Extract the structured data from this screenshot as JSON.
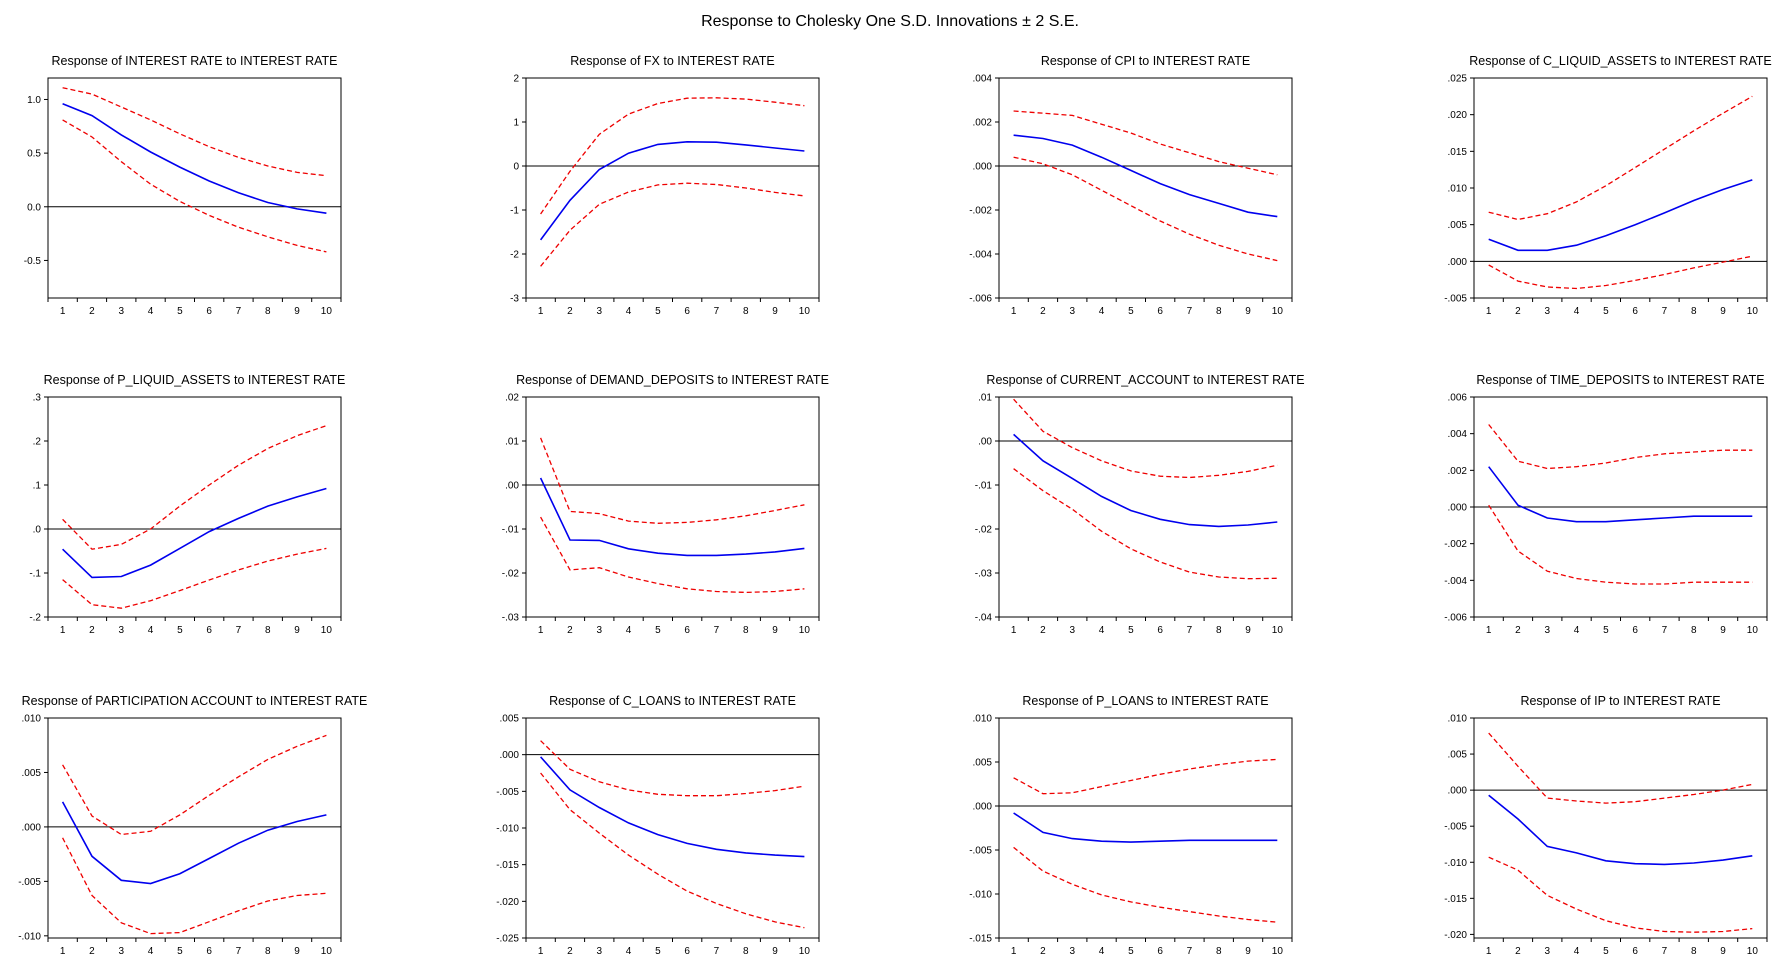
{
  "figure": {
    "title": "Response to Cholesky One S.D. Innovations ± 2 S.E."
  },
  "colors": {
    "response": "#0000ee",
    "bands": "#ee0000",
    "axis": "#000000"
  },
  "chart_data": [
    {
      "type": "line",
      "title": "Response of INTEREST RATE to INTEREST RATE",
      "x": [
        1,
        2,
        3,
        4,
        5,
        6,
        7,
        8,
        9,
        10
      ],
      "ylim": [
        -0.85,
        1.2
      ],
      "yticks": [
        1.0,
        0.5,
        0.0,
        -0.5
      ],
      "ytick_labels": [
        "1.0",
        "0.5",
        "0.0",
        "-0.5"
      ],
      "series": [
        {
          "role": "response",
          "values": [
            0.96,
            0.85,
            0.67,
            0.51,
            0.37,
            0.24,
            0.13,
            0.04,
            -0.02,
            -0.06
          ]
        },
        {
          "role": "upper",
          "values": [
            1.11,
            1.05,
            0.93,
            0.81,
            0.68,
            0.56,
            0.46,
            0.38,
            0.32,
            0.29
          ]
        },
        {
          "role": "lower",
          "values": [
            0.81,
            0.65,
            0.42,
            0.21,
            0.05,
            -0.08,
            -0.19,
            -0.28,
            -0.36,
            -0.42
          ]
        }
      ]
    },
    {
      "type": "line",
      "title": "Response of FX to INTEREST RATE",
      "x": [
        1,
        2,
        3,
        4,
        5,
        6,
        7,
        8,
        9,
        10
      ],
      "ylim": [
        -3,
        2
      ],
      "yticks": [
        2,
        1,
        0,
        -1,
        -2,
        -3
      ],
      "ytick_labels": [
        "2",
        "1",
        "0",
        "-1",
        "-2",
        "-3"
      ],
      "series": [
        {
          "role": "response",
          "values": [
            -1.68,
            -0.78,
            -0.08,
            0.29,
            0.49,
            0.55,
            0.54,
            0.48,
            0.41,
            0.34
          ]
        },
        {
          "role": "upper",
          "values": [
            -1.09,
            -0.12,
            0.72,
            1.18,
            1.42,
            1.54,
            1.55,
            1.52,
            1.45,
            1.37
          ]
        },
        {
          "role": "lower",
          "values": [
            -2.28,
            -1.46,
            -0.87,
            -0.59,
            -0.43,
            -0.39,
            -0.42,
            -0.5,
            -0.6,
            -0.68
          ]
        }
      ]
    },
    {
      "type": "line",
      "title": "Response of CPI to INTEREST RATE",
      "x": [
        1,
        2,
        3,
        4,
        5,
        6,
        7,
        8,
        9,
        10
      ],
      "ylim": [
        -0.006,
        0.004
      ],
      "yticks": [
        0.004,
        0.002,
        0,
        -0.002,
        -0.004,
        -0.006
      ],
      "ytick_labels": [
        ".004",
        ".002",
        ".000",
        "-.002",
        "-.004",
        "-.006"
      ],
      "series": [
        {
          "role": "response",
          "values": [
            0.0014,
            0.00125,
            0.00095,
            0.0004,
            -0.0002,
            -0.0008,
            -0.0013,
            -0.0017,
            -0.0021,
            -0.0023
          ]
        },
        {
          "role": "upper",
          "values": [
            0.0025,
            0.0024,
            0.0023,
            0.0019,
            0.0015,
            0.001,
            0.0006,
            0.0002,
            -0.0001,
            -0.0004
          ]
        },
        {
          "role": "lower",
          "values": [
            0.0004,
            0.0001,
            -0.0004,
            -0.0011,
            -0.0018,
            -0.0025,
            -0.0031,
            -0.0036,
            -0.004,
            -0.0043
          ]
        }
      ]
    },
    {
      "type": "line",
      "title": "Response of C_LIQUID_ASSETS to INTEREST RATE",
      "x": [
        1,
        2,
        3,
        4,
        5,
        6,
        7,
        8,
        9,
        10
      ],
      "ylim": [
        -0.005,
        0.025
      ],
      "yticks": [
        0.025,
        0.02,
        0.015,
        0.01,
        0.005,
        0,
        -0.005
      ],
      "ytick_labels": [
        ".025",
        ".020",
        ".015",
        ".010",
        ".005",
        ".000",
        "-.005"
      ],
      "series": [
        {
          "role": "response",
          "values": [
            0.003,
            0.0015,
            0.0015,
            0.0022,
            0.0035,
            0.005,
            0.0066,
            0.0083,
            0.0098,
            0.0111
          ]
        },
        {
          "role": "upper",
          "values": [
            0.0067,
            0.0057,
            0.0065,
            0.0081,
            0.0103,
            0.0128,
            0.0153,
            0.0178,
            0.0202,
            0.0225
          ]
        },
        {
          "role": "lower",
          "values": [
            -0.0005,
            -0.0027,
            -0.0035,
            -0.0037,
            -0.0033,
            -0.0026,
            -0.0018,
            -0.0009,
            -0.0001,
            0.0007
          ]
        }
      ]
    },
    {
      "type": "line",
      "title": "Response of P_LIQUID_ASSETS to INTEREST RATE",
      "x": [
        1,
        2,
        3,
        4,
        5,
        6,
        7,
        8,
        9,
        10
      ],
      "ylim": [
        -0.2,
        0.3
      ],
      "yticks": [
        0.3,
        0.2,
        0.1,
        0,
        -0.1,
        -0.2
      ],
      "ytick_labels": [
        ".3",
        ".2",
        ".1",
        ".0",
        "-.1",
        "-.2"
      ],
      "series": [
        {
          "role": "response",
          "values": [
            -0.046,
            -0.11,
            -0.108,
            -0.082,
            -0.044,
            -0.006,
            0.024,
            0.052,
            0.073,
            0.092
          ]
        },
        {
          "role": "upper",
          "values": [
            0.022,
            -0.046,
            -0.035,
            0.0,
            0.052,
            0.1,
            0.145,
            0.183,
            0.212,
            0.235
          ]
        },
        {
          "role": "lower",
          "values": [
            -0.115,
            -0.172,
            -0.18,
            -0.163,
            -0.14,
            -0.116,
            -0.093,
            -0.073,
            -0.057,
            -0.044
          ]
        }
      ]
    },
    {
      "type": "line",
      "title": "Response of DEMAND_DEPOSITS to INTEREST RATE",
      "x": [
        1,
        2,
        3,
        4,
        5,
        6,
        7,
        8,
        9,
        10
      ],
      "ylim": [
        -0.03,
        0.02
      ],
      "yticks": [
        0.02,
        0.01,
        0,
        -0.01,
        -0.02,
        -0.03
      ],
      "ytick_labels": [
        ".02",
        ".01",
        ".00",
        "-.01",
        "-.02",
        "-.03"
      ],
      "series": [
        {
          "role": "response",
          "values": [
            0.0016,
            -0.0125,
            -0.0126,
            -0.0145,
            -0.0155,
            -0.016,
            -0.016,
            -0.0157,
            -0.0152,
            -0.0144
          ]
        },
        {
          "role": "upper",
          "values": [
            0.0107,
            -0.006,
            -0.0065,
            -0.0082,
            -0.0087,
            -0.0085,
            -0.0079,
            -0.007,
            -0.0058,
            -0.0045
          ]
        },
        {
          "role": "lower",
          "values": [
            -0.0073,
            -0.0193,
            -0.0188,
            -0.0209,
            -0.0224,
            -0.0236,
            -0.0242,
            -0.0244,
            -0.0242,
            -0.0236
          ]
        }
      ]
    },
    {
      "type": "line",
      "title": "Response of CURRENT_ACCOUNT to INTEREST RATE",
      "x": [
        1,
        2,
        3,
        4,
        5,
        6,
        7,
        8,
        9,
        10
      ],
      "ylim": [
        -0.04,
        0.01
      ],
      "yticks": [
        0.01,
        0,
        -0.01,
        -0.02,
        -0.03,
        -0.04
      ],
      "ytick_labels": [
        ".01",
        ".00",
        "-.01",
        "-.02",
        "-.03",
        "-.04"
      ],
      "series": [
        {
          "role": "response",
          "values": [
            0.0015,
            -0.0045,
            -0.0085,
            -0.0126,
            -0.0158,
            -0.0178,
            -0.019,
            -0.0194,
            -0.0191,
            -0.0184
          ]
        },
        {
          "role": "upper",
          "values": [
            0.0095,
            0.0022,
            -0.0015,
            -0.0045,
            -0.0068,
            -0.008,
            -0.0083,
            -0.0078,
            -0.0069,
            -0.0055
          ]
        },
        {
          "role": "lower",
          "values": [
            -0.0063,
            -0.0113,
            -0.0155,
            -0.0205,
            -0.0245,
            -0.0275,
            -0.0298,
            -0.0309,
            -0.0313,
            -0.0312
          ]
        }
      ]
    },
    {
      "type": "line",
      "title": "Response of TIME_DEPOSITS to INTEREST RATE",
      "x": [
        1,
        2,
        3,
        4,
        5,
        6,
        7,
        8,
        9,
        10
      ],
      "ylim": [
        -0.006,
        0.006
      ],
      "yticks": [
        0.006,
        0.004,
        0.002,
        0,
        -0.002,
        -0.004,
        -0.006
      ],
      "ytick_labels": [
        ".006",
        ".004",
        ".002",
        ".000",
        "-.002",
        "-.004",
        "-.006"
      ],
      "series": [
        {
          "role": "response",
          "values": [
            0.0022,
            0.0001,
            -0.0006,
            -0.0008,
            -0.0008,
            -0.0007,
            -0.0006,
            -0.0005,
            -0.0005,
            -0.0005
          ]
        },
        {
          "role": "upper",
          "values": [
            0.0045,
            0.0025,
            0.0021,
            0.0022,
            0.0024,
            0.0027,
            0.0029,
            0.003,
            0.0031,
            0.0031
          ]
        },
        {
          "role": "lower",
          "values": [
            0.0001,
            -0.0024,
            -0.0035,
            -0.0039,
            -0.0041,
            -0.0042,
            -0.0042,
            -0.0041,
            -0.0041,
            -0.0041
          ]
        }
      ]
    },
    {
      "type": "line",
      "title": "Response of PARTICIPATION ACCOUNT to INTEREST RATE",
      "x": [
        1,
        2,
        3,
        4,
        5,
        6,
        7,
        8,
        9,
        10
      ],
      "ylim": [
        -0.0102,
        0.01
      ],
      "yticks": [
        0.01,
        0.005,
        0,
        -0.005,
        -0.01
      ],
      "ytick_labels": [
        ".010",
        ".005",
        ".000",
        "-.005",
        "-.010"
      ],
      "series": [
        {
          "role": "response",
          "values": [
            0.0023,
            -0.0027,
            -0.0049,
            -0.0052,
            -0.0043,
            -0.0029,
            -0.0015,
            -0.0003,
            0.0005,
            0.0011
          ]
        },
        {
          "role": "upper",
          "values": [
            0.0057,
            0.001,
            -0.0007,
            -0.0004,
            0.0011,
            0.0029,
            0.0046,
            0.0062,
            0.0074,
            0.0084
          ]
        },
        {
          "role": "lower",
          "values": [
            -0.001,
            -0.0063,
            -0.0088,
            -0.0098,
            -0.0097,
            -0.0087,
            -0.0077,
            -0.0068,
            -0.0063,
            -0.0061
          ]
        }
      ]
    },
    {
      "type": "line",
      "title": "Response of C_LOANS to INTEREST RATE",
      "x": [
        1,
        2,
        3,
        4,
        5,
        6,
        7,
        8,
        9,
        10
      ],
      "ylim": [
        -0.025,
        0.005
      ],
      "yticks": [
        0.005,
        0,
        -0.005,
        -0.01,
        -0.015,
        -0.02,
        -0.025
      ],
      "ytick_labels": [
        ".005",
        ".000",
        "-.005",
        "-.010",
        "-.015",
        "-.020",
        "-.025"
      ],
      "series": [
        {
          "role": "response",
          "values": [
            -0.0003,
            -0.0048,
            -0.0072,
            -0.0093,
            -0.0109,
            -0.0121,
            -0.0129,
            -0.0134,
            -0.0137,
            -0.0139
          ]
        },
        {
          "role": "upper",
          "values": [
            0.0019,
            -0.002,
            -0.0037,
            -0.0048,
            -0.0054,
            -0.0056,
            -0.0056,
            -0.0053,
            -0.0049,
            -0.0043
          ]
        },
        {
          "role": "lower",
          "values": [
            -0.0025,
            -0.0075,
            -0.0107,
            -0.0137,
            -0.0163,
            -0.0186,
            -0.0203,
            -0.0217,
            -0.0228,
            -0.0236
          ]
        }
      ]
    },
    {
      "type": "line",
      "title": "Response of P_LOANS to INTEREST RATE",
      "x": [
        1,
        2,
        3,
        4,
        5,
        6,
        7,
        8,
        9,
        10
      ],
      "ylim": [
        -0.015,
        0.01
      ],
      "yticks": [
        0.01,
        0.005,
        0,
        -0.005,
        -0.01,
        -0.015
      ],
      "ytick_labels": [
        ".010",
        ".005",
        ".000",
        "-.005",
        "-.010",
        "-.015"
      ],
      "series": [
        {
          "role": "response",
          "values": [
            -0.0008,
            -0.003,
            -0.0037,
            -0.004,
            -0.0041,
            -0.004,
            -0.0039,
            -0.0039,
            -0.0039,
            -0.0039
          ]
        },
        {
          "role": "upper",
          "values": [
            0.0032,
            0.0014,
            0.0015,
            0.0022,
            0.0029,
            0.0036,
            0.0042,
            0.0047,
            0.0051,
            0.0053
          ]
        },
        {
          "role": "lower",
          "values": [
            -0.0047,
            -0.0074,
            -0.0089,
            -0.0101,
            -0.0109,
            -0.0115,
            -0.012,
            -0.0125,
            -0.0129,
            -0.0132
          ]
        }
      ]
    },
    {
      "type": "line",
      "title": "Response of IP to INTEREST RATE",
      "x": [
        1,
        2,
        3,
        4,
        5,
        6,
        7,
        8,
        9,
        10
      ],
      "ylim": [
        -0.0205,
        0.01
      ],
      "yticks": [
        0.01,
        0.005,
        0,
        -0.005,
        -0.01,
        -0.015,
        -0.02
      ],
      "ytick_labels": [
        ".010",
        ".005",
        ".000",
        "-.005",
        "-.010",
        "-.015",
        "-.020"
      ],
      "series": [
        {
          "role": "response",
          "values": [
            -0.0007,
            -0.004,
            -0.0078,
            -0.0087,
            -0.0098,
            -0.0102,
            -0.0103,
            -0.0101,
            -0.0097,
            -0.0091
          ]
        },
        {
          "role": "upper",
          "values": [
            0.0079,
            0.0033,
            -0.0011,
            -0.0015,
            -0.0018,
            -0.0016,
            -0.0011,
            -0.0006,
            0.0,
            0.0008
          ]
        },
        {
          "role": "lower",
          "values": [
            -0.0093,
            -0.0111,
            -0.0146,
            -0.0165,
            -0.0181,
            -0.0191,
            -0.0196,
            -0.0197,
            -0.0196,
            -0.0192
          ]
        }
      ]
    }
  ]
}
